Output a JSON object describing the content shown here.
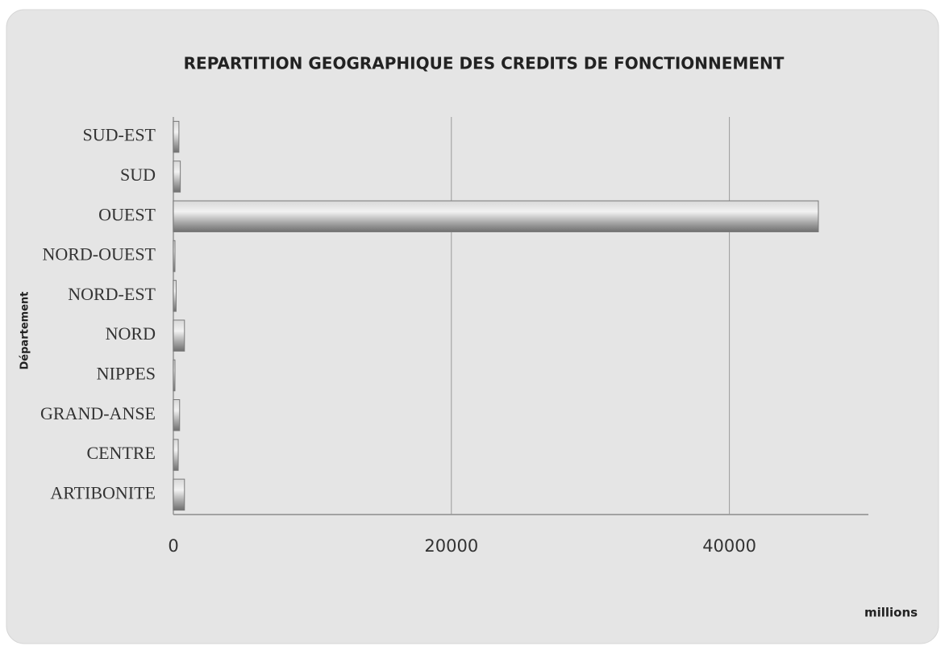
{
  "chart_data": {
    "type": "barh",
    "title": "REPARTITION GEOGRAPHIQUE DES CREDITS DE FONCTIONNEMENT",
    "xlabel": "millions",
    "ylabel": "Département",
    "categories": [
      "ARTIBONITE",
      "CENTRE",
      "GRAND-ANSE",
      "NIPPES",
      "NORD",
      "NORD-EST",
      "NORD-OUEST",
      "OUEST",
      "SUD",
      "SUD-EST"
    ],
    "values": [
      800,
      350,
      450,
      100,
      800,
      200,
      100,
      46400,
      500,
      400
    ],
    "color": "#9a9a9a",
    "xlim": [
      0,
      50000
    ],
    "xticks": [
      0,
      20000,
      40000
    ],
    "grid": true
  }
}
